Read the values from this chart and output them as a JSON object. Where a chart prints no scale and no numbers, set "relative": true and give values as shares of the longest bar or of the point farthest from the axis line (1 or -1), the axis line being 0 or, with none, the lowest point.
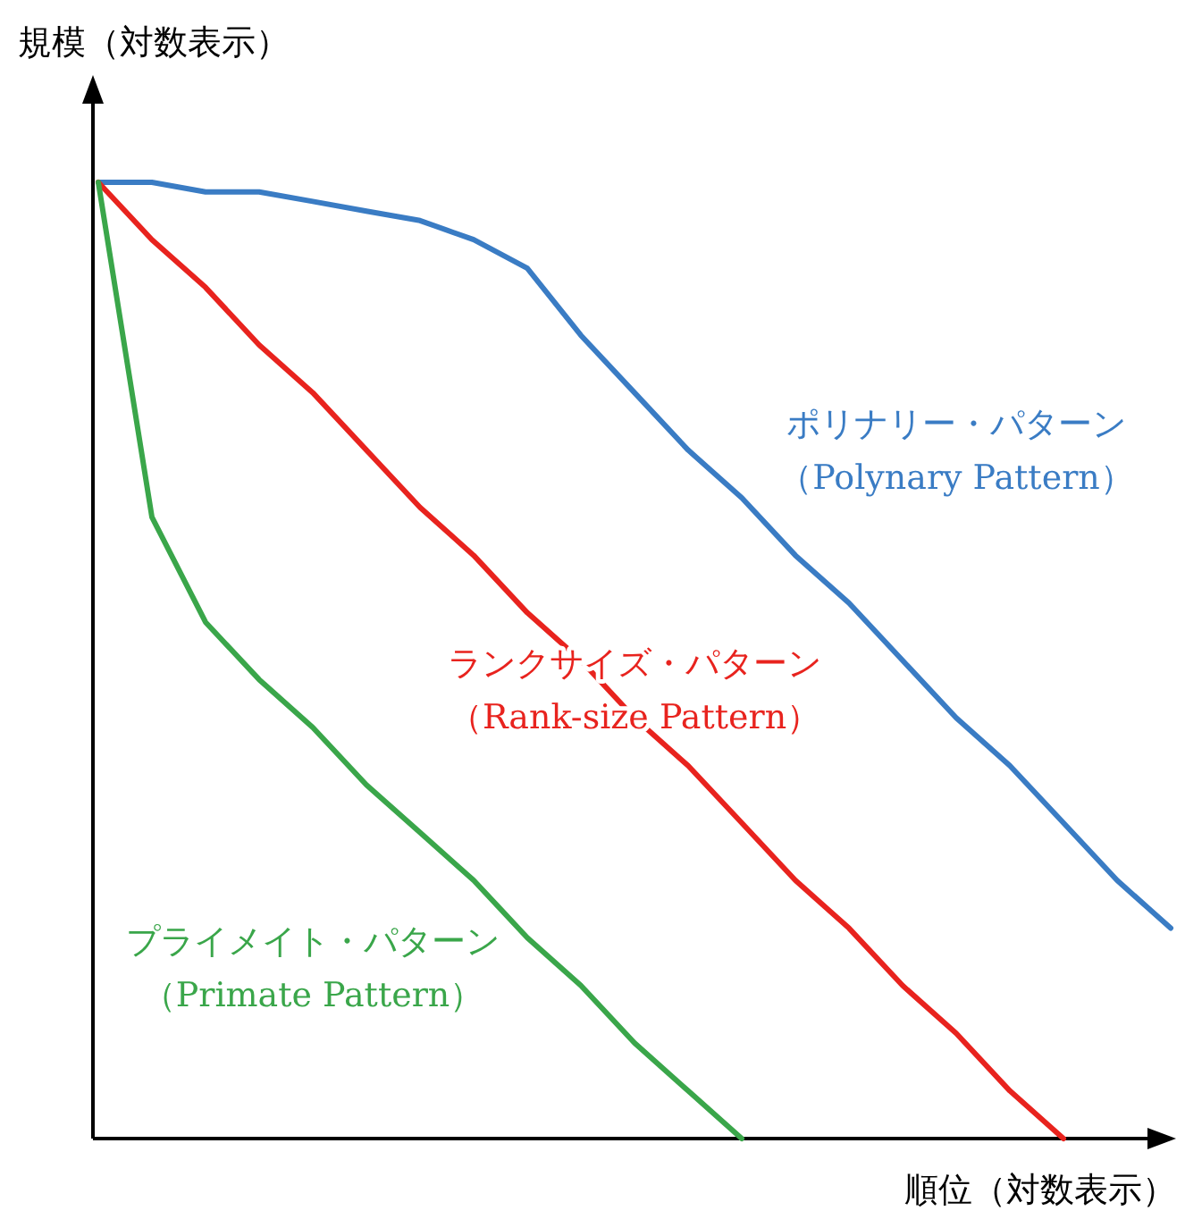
{
  "chart_data": {
    "type": "line",
    "relative": true,
    "xlabel": "順位（対数表示）",
    "ylabel": "規模（対数表示）",
    "categories": [
      null,
      null,
      null,
      null,
      null,
      null,
      null,
      null,
      null,
      null,
      null,
      null,
      null,
      null,
      null,
      null,
      null,
      null,
      null,
      null,
      null
    ],
    "series": [
      {
        "name": "ポリナリー・パターン（Polynary Pattern）",
        "color": "#3a7cc4",
        "values": [
          1,
          1,
          0.99,
          0.99,
          0.98,
          0.97,
          0.96,
          0.94,
          0.91,
          0.84,
          0.78,
          0.72,
          0.67,
          0.61,
          0.56,
          0.5,
          0.44,
          0.39,
          0.33,
          0.27,
          0.22
        ]
      },
      {
        "name": "ランクサイズ・パターン（Rank-size Pattern）",
        "color": "#e8231e",
        "values": [
          1,
          0.94,
          0.89,
          0.83,
          0.78,
          0.72,
          0.66,
          0.61,
          0.55,
          0.5,
          0.44,
          0.39,
          0.33,
          0.27,
          0.22,
          0.16,
          0.11,
          0.05,
          0,
          null,
          null
        ]
      },
      {
        "name": "プライメイト・パターン（Primate Pattern）",
        "color": "#3aa64a",
        "values": [
          1,
          0.65,
          0.54,
          0.48,
          0.43,
          0.37,
          0.32,
          0.27,
          0.21,
          0.16,
          0.1,
          0.05,
          0,
          null,
          null,
          null,
          null,
          null,
          null,
          null,
          null
        ]
      }
    ]
  }
}
